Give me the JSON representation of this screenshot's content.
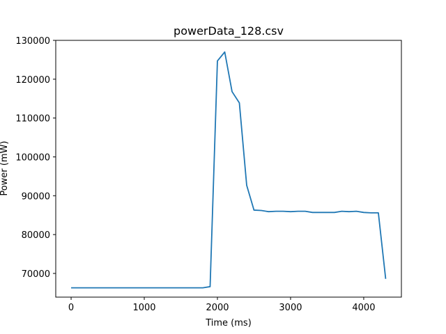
{
  "chart_data": {
    "type": "line",
    "title": "powerData_128.csv",
    "xlabel": "Time (ms)",
    "ylabel": "Power (mW)",
    "xlim": [
      -210,
      4515
    ],
    "ylim": [
      63900,
      130000
    ],
    "xticks": [
      0,
      1000,
      2000,
      3000,
      4000
    ],
    "yticks": [
      70000,
      80000,
      90000,
      100000,
      110000,
      120000,
      130000
    ],
    "grid": false,
    "series": [
      {
        "color": "#1f77b4",
        "x": [
          0,
          100,
          200,
          300,
          400,
          500,
          600,
          700,
          800,
          900,
          1000,
          1100,
          1200,
          1300,
          1400,
          1500,
          1600,
          1700,
          1800,
          1900,
          2000,
          2100,
          2200,
          2300,
          2400,
          2500,
          2600,
          2700,
          2800,
          2900,
          3000,
          3100,
          3200,
          3300,
          3400,
          3500,
          3600,
          3700,
          3800,
          3900,
          4000,
          4100,
          4200,
          4300
        ],
        "y": [
          66300,
          66300,
          66300,
          66300,
          66300,
          66300,
          66300,
          66300,
          66300,
          66300,
          66300,
          66300,
          66300,
          66300,
          66300,
          66300,
          66300,
          66300,
          66300,
          66600,
          124700,
          127000,
          116800,
          113900,
          92700,
          86300,
          86200,
          85900,
          86000,
          86000,
          85900,
          86000,
          86000,
          85700,
          85700,
          85700,
          85700,
          86000,
          85900,
          86000,
          85700,
          85600,
          85600,
          68600
        ]
      }
    ]
  }
}
